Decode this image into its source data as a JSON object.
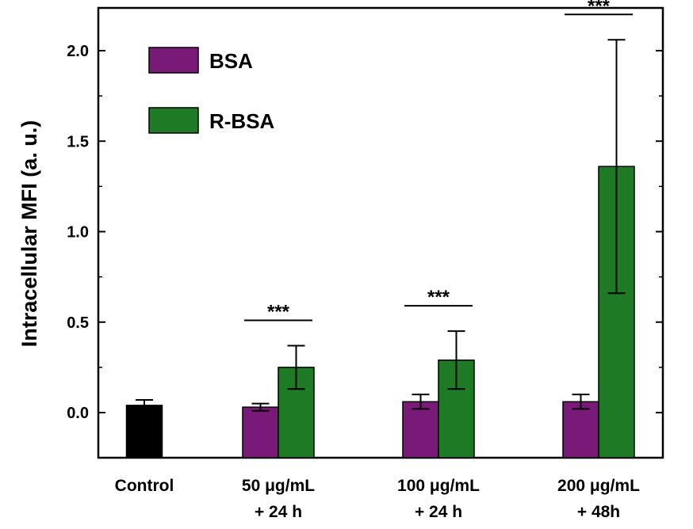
{
  "chart_data": {
    "type": "bar",
    "ylabel": "Intracellular MFI (a. u.)",
    "xlabel": "",
    "ylim": [
      -0.25,
      2.3
    ],
    "yticks": [
      "0.0",
      "0.5",
      "1.0",
      "1.5",
      "2.0"
    ],
    "ytick_values": [
      0.0,
      0.5,
      1.0,
      1.5,
      2.0
    ],
    "categories": [
      {
        "lines": [
          "Control"
        ]
      },
      {
        "lines": [
          "50 μg/mL",
          "+ 24 h"
        ]
      },
      {
        "lines": [
          "100 μg/mL",
          "+ 24 h"
        ]
      },
      {
        "lines": [
          "200 μg/mL",
          "+ 48h"
        ]
      }
    ],
    "control": {
      "value": 0.04,
      "error": 0.03,
      "color": "#000000"
    },
    "series": [
      {
        "name": "BSA",
        "color": "#7a1a78",
        "values": [
          null,
          0.03,
          0.06,
          0.06
        ],
        "errors": [
          null,
          0.02,
          0.04,
          0.04
        ]
      },
      {
        "name": "R-BSA",
        "color": "#1f7a25",
        "values": [
          null,
          0.25,
          0.29,
          1.36
        ],
        "errors": [
          null,
          0.12,
          0.16,
          0.7
        ]
      }
    ],
    "significance": [
      {
        "category": 1,
        "label": "***"
      },
      {
        "category": 2,
        "label": "***"
      },
      {
        "category": 3,
        "label": "***"
      }
    ],
    "legend_position": "top-left",
    "grid": false
  }
}
